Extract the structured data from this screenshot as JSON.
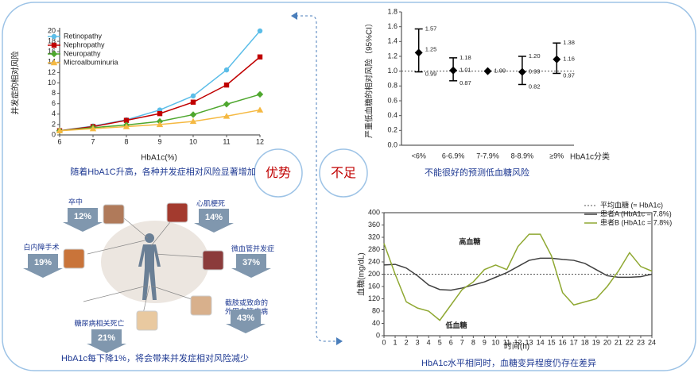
{
  "chart_data": [
    {
      "type": "line",
      "ylabel": "并发症的相对风险",
      "xlabel": "HbA1c(%)",
      "caption": "随着HbA1C升高，各种并发症相对风险显著增加",
      "x": [
        6,
        7,
        8,
        9,
        10,
        11,
        12
      ],
      "xlim": [
        6,
        12
      ],
      "xticks": [
        6,
        7,
        8,
        9,
        10,
        11,
        12
      ],
      "ylim": [
        0,
        20
      ],
      "yticks": [
        0,
        2,
        4,
        6,
        8,
        10,
        12,
        14,
        16,
        18,
        20
      ],
      "legend": "upper left",
      "frame": false,
      "series": [
        {
          "name": "Retinopathy",
          "color": "#5bbde8",
          "marker": "circle",
          "values": [
            0.8,
            1.7,
            2.9,
            4.8,
            7.5,
            12.5,
            20
          ]
        },
        {
          "name": "Nephropathy",
          "color": "#c00000",
          "marker": "square",
          "values": [
            0.8,
            1.6,
            2.8,
            4.1,
            6.3,
            9.6,
            15
          ]
        },
        {
          "name": "Neuropathy",
          "color": "#4ea72e",
          "marker": "diamond",
          "values": [
            0.8,
            1.4,
            1.9,
            2.6,
            3.9,
            5.9,
            7.8
          ]
        },
        {
          "name": "Microalbuminuria",
          "color": "#f5b942",
          "marker": "triangle",
          "values": [
            0.8,
            1.2,
            1.6,
            2.0,
            2.6,
            3.6,
            4.8
          ]
        }
      ]
    },
    {
      "type": "errorbar",
      "ylabel": "严重低血糖的相对风险（95%CI）",
      "xlabel": "HbA1c分类",
      "caption": "不能很好的预测低血糖风险",
      "categories": [
        "<6%",
        "6-6.9%",
        "7-7.9%",
        "8-8.9%",
        "≥9%"
      ],
      "values": [
        1.25,
        1.01,
        1.0,
        0.99,
        1.16
      ],
      "value_labels": [
        "1.25",
        "1.01",
        "1.00",
        "0.99",
        "1.16"
      ],
      "lower": [
        0.99,
        0.87,
        null,
        0.82,
        0.97
      ],
      "upper": [
        1.57,
        1.18,
        null,
        1.2,
        1.38
      ],
      "upper_labels": [
        "1.57",
        "1.18",
        null,
        "1.20",
        "1.38"
      ],
      "color": "#000000",
      "reference_line": {
        "value": 1
      },
      "ylim": [
        0,
        1.8
      ],
      "yticks": [
        {
          "value": 0,
          "label": "0.0"
        },
        0.2,
        0.4,
        0.6,
        0.8,
        {
          "value": 1,
          "label": "1.0"
        },
        1.2,
        1.4,
        1.6,
        1.8
      ]
    },
    {
      "type": "line",
      "ylabel": "血糖(mg/dL)",
      "xlabel": "时间(h)",
      "caption": "HbA1c水平相同时，血糖变异程度仍存在差异",
      "annotations": [
        "高血糖",
        "低血糖"
      ],
      "legend": "upper right",
      "frame": true,
      "reference_line": {
        "value": 200,
        "label": "平均血糖 (≈ HbA1c)"
      },
      "x": [
        0,
        1,
        2,
        3,
        4,
        5,
        6,
        7,
        8,
        9,
        10,
        11,
        12,
        13,
        14,
        15,
        16,
        17,
        18,
        19,
        20,
        21,
        22,
        23,
        24
      ],
      "xlim": [
        0,
        24
      ],
      "xticks": [
        0,
        1,
        2,
        3,
        4,
        5,
        6,
        7,
        8,
        9,
        10,
        11,
        12,
        13,
        14,
        15,
        16,
        17,
        18,
        19,
        20,
        21,
        22,
        23,
        24
      ],
      "ylim": [
        0,
        400
      ],
      "yticks": [
        0,
        40,
        80,
        120,
        160,
        200,
        240,
        280,
        320,
        360,
        400
      ],
      "series": [
        {
          "name": "患者A (HbA1c = 7.8%)",
          "color": "#404040",
          "marker": "none",
          "values": [
            230,
            232,
            220,
            195,
            165,
            150,
            148,
            155,
            165,
            175,
            190,
            205,
            225,
            245,
            252,
            252,
            248,
            245,
            235,
            215,
            195,
            190,
            190,
            192,
            200
          ]
        },
        {
          "name": "患者B (HbA1c = 7.8%)",
          "color": "#8fa832",
          "marker": "none",
          "values": [
            300,
            200,
            110,
            90,
            80,
            50,
            100,
            150,
            175,
            215,
            230,
            215,
            290,
            330,
            330,
            260,
            140,
            100,
            110,
            120,
            160,
            210,
            270,
            225,
            210
          ]
        }
      ]
    }
  ],
  "slide": {
    "advantage": "优势",
    "disadvantage": "不足"
  },
  "infographic": {
    "caption": "HbA1c每下降1%，将会带来并发症相对风险减少",
    "items": [
      {
        "label": "卒中",
        "value": "12%"
      },
      {
        "label": "心肌梗死",
        "value": "14%"
      },
      {
        "label": "白内障手术",
        "value": "19%"
      },
      {
        "label": "微血管并发症",
        "value": "37%"
      },
      {
        "label": [
          "截肢或致命的",
          "外周血管疾病"
        ],
        "value": "43%"
      },
      {
        "label": "糖尿病相关死亡",
        "value": "21%"
      }
    ]
  }
}
